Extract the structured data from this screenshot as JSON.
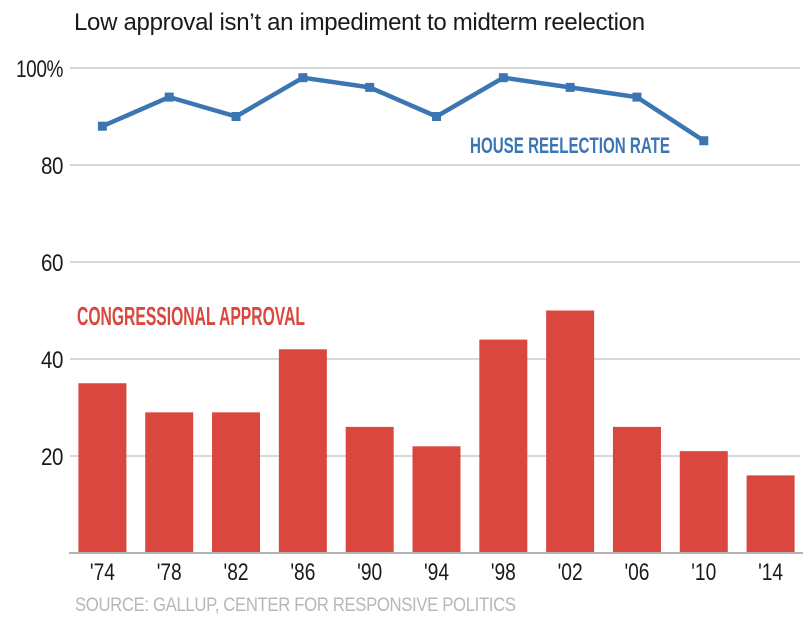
{
  "title": "Low approval isn’t an impediment to midterm reelection",
  "source": "SOURCE: GALLUP, CENTER FOR RESPONSIVE POLITICS",
  "colors": {
    "bar_red": "#d9473e",
    "line_blue": "#3b76b2",
    "gridline": "#cccccc",
    "axis_line": "#b3b3b3",
    "tick_text": "#1a1a1a",
    "source_gray": "#b7b7b7"
  },
  "chart_data": {
    "type": "bar",
    "title": "Low approval isn’t an impediment to midterm reelection",
    "xlabel": "",
    "ylabel": "",
    "ylim": [
      0,
      105
    ],
    "grid": true,
    "legend": "inline-annotations",
    "categories": [
      "'74",
      "'78",
      "'82",
      "'86",
      "'90",
      "'94",
      "'98",
      "'02",
      "'06",
      "'10",
      "'14"
    ],
    "y_ticks": [
      {
        "value": 100,
        "label": "100%"
      },
      {
        "value": 80,
        "label": "80"
      },
      {
        "value": 60,
        "label": "60"
      },
      {
        "value": 40,
        "label": "40"
      },
      {
        "value": 20,
        "label": "20"
      }
    ],
    "series": [
      {
        "name": "CONGRESSIONAL APPROVAL",
        "type": "bar",
        "color": "#d9473e",
        "values": [
          35,
          29,
          29,
          42,
          26,
          22,
          44,
          50,
          26,
          21,
          16
        ]
      },
      {
        "name": "HOUSE REELECTION RATE",
        "type": "line",
        "color": "#3b76b2",
        "values": [
          88,
          94,
          90,
          98,
          96,
          90,
          98,
          96,
          94,
          85,
          null
        ]
      }
    ]
  }
}
